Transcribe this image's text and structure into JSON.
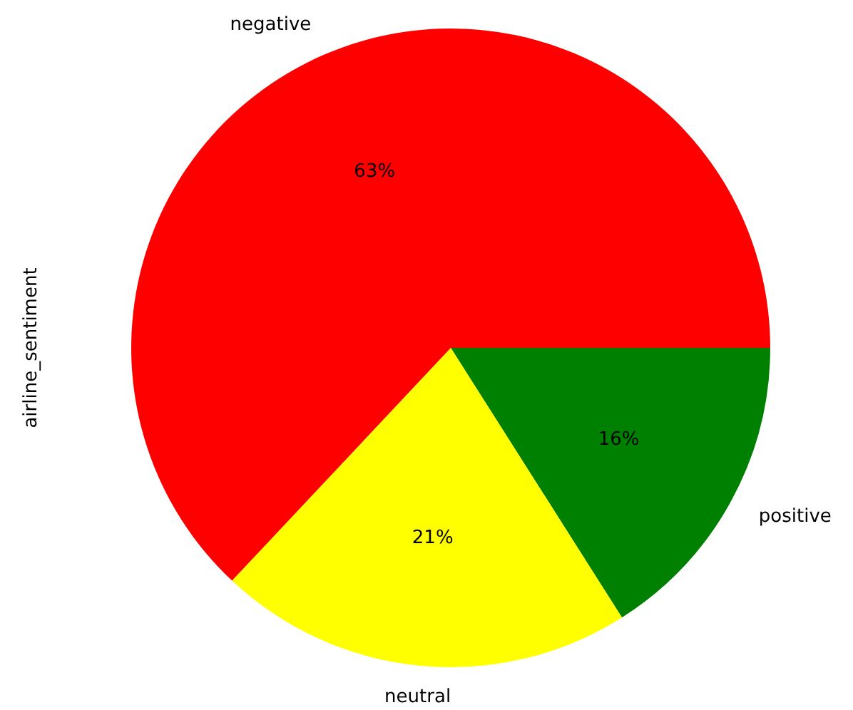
{
  "chart_data": {
    "type": "pie",
    "ylabel": "airline_sentiment",
    "categories": [
      "negative",
      "neutral",
      "positive"
    ],
    "values": [
      63,
      21,
      16
    ],
    "colors": [
      "#ff0000",
      "#ffff00",
      "#008000"
    ],
    "value_labels": [
      "63%",
      "21%",
      "16%"
    ],
    "legend": false
  }
}
